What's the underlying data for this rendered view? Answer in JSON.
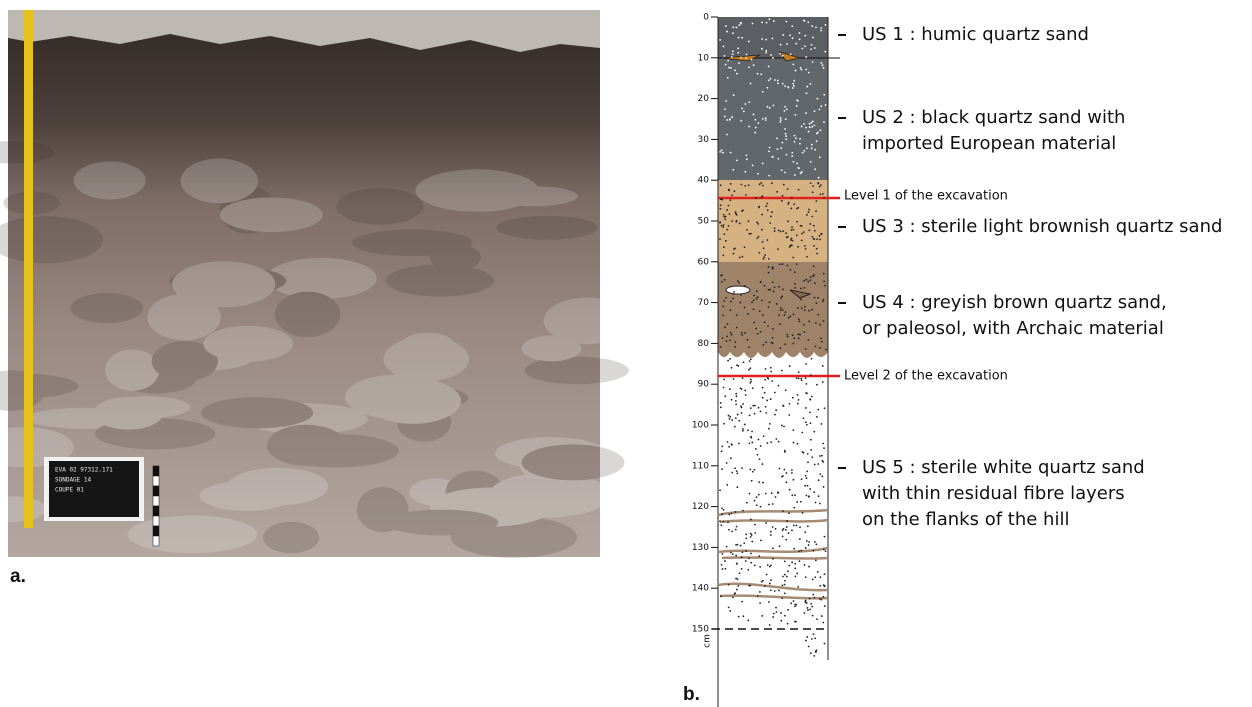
{
  "panel_a": {
    "label": "a.",
    "board_text": [
      "EVA 02 97312.171",
      "SONDAGE 14",
      "COUPE 01"
    ]
  },
  "panel_b": {
    "label": "b.",
    "depth_unit": "cm",
    "depth_ticks": [
      0,
      10,
      20,
      30,
      40,
      50,
      60,
      70,
      80,
      90,
      100,
      110,
      120,
      130,
      140,
      150
    ],
    "layers": [
      {
        "lines": [
          "US 1 : humic quartz sand"
        ]
      },
      {
        "lines": [
          "US 2 : black quartz sand with",
          "imported European material"
        ]
      },
      {
        "lines": [
          "US 3 : sterile light brownish quartz sand"
        ]
      },
      {
        "lines": [
          "US 4 : greyish brown quartz sand,",
          "or paleosol, with Archaic material"
        ]
      },
      {
        "lines": [
          "US 5 : sterile white quartz sand",
          "with thin residual fibre layers",
          "on the flanks of the hill"
        ]
      }
    ],
    "levels": [
      "Level 1 of the excavation",
      "Level 2 of the excavation"
    ]
  }
}
